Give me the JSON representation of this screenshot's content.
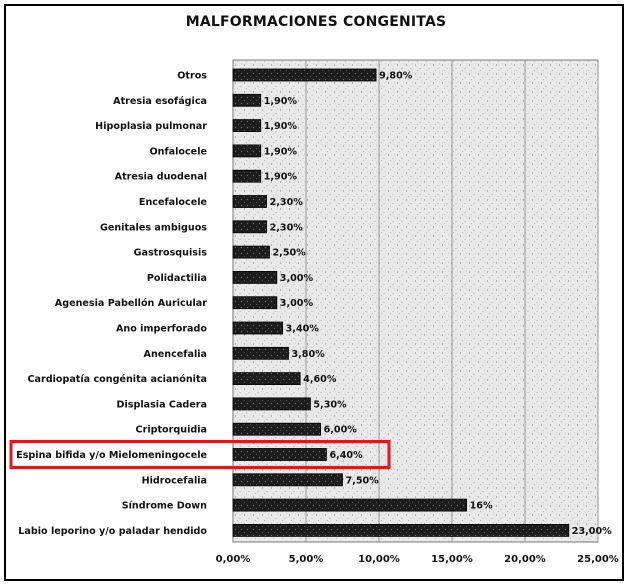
{
  "chart_data": {
    "type": "bar",
    "orientation": "horizontal",
    "title": "MALFORMACIONES CONGENITAS",
    "categories": [
      "Otros",
      "Atresia esofágica",
      "Hipoplasia pulmonar",
      "Onfalocele",
      "Atresia duodenal",
      "Encefalocele",
      "Genitales ambiguos",
      "Gastrosquisis",
      "Polidactilia",
      "Agenesia Pabellón Auricular",
      "Ano imperforado",
      "Anencefalia",
      "Cardiopatía congénita acianónita",
      "Displasia Cadera",
      "Criptorquidia",
      "Espina bifida y/o Mielomeningocele",
      "Hidrocefalia",
      "Síndrome Down",
      "Labio leporino y/o paladar hendido"
    ],
    "values": [
      9.8,
      1.9,
      1.9,
      1.9,
      1.9,
      2.3,
      2.3,
      2.5,
      3.0,
      3.0,
      3.4,
      3.8,
      4.6,
      5.3,
      6.0,
      6.4,
      7.5,
      16,
      23.0
    ],
    "value_labels": [
      "9,80%",
      "1,90%",
      "1,90%",
      "1,90%",
      "1,90%",
      "2,30%",
      "2,30%",
      "2,50%",
      "3,00%",
      "3,00%",
      "3,40%",
      "3,80%",
      "4,60%",
      "5,30%",
      "6,00%",
      "6,40%",
      "7,50%",
      "16%",
      "23,00%"
    ],
    "xlim": [
      0,
      25
    ],
    "x_ticks": [
      0,
      5,
      10,
      15,
      20,
      25
    ],
    "x_tick_labels": [
      "0,00%",
      "5,00%",
      "10,00%",
      "15,00%",
      "20,00%",
      "25,00%"
    ],
    "grid": true,
    "highlighted_category": "Espina bifida y/o Mielomeningocele",
    "colors": {
      "bar": "#1a1a1a",
      "plot_background": "#e4e4e4",
      "highlight": "#e8141b",
      "grid": "#9a9a9a"
    }
  }
}
